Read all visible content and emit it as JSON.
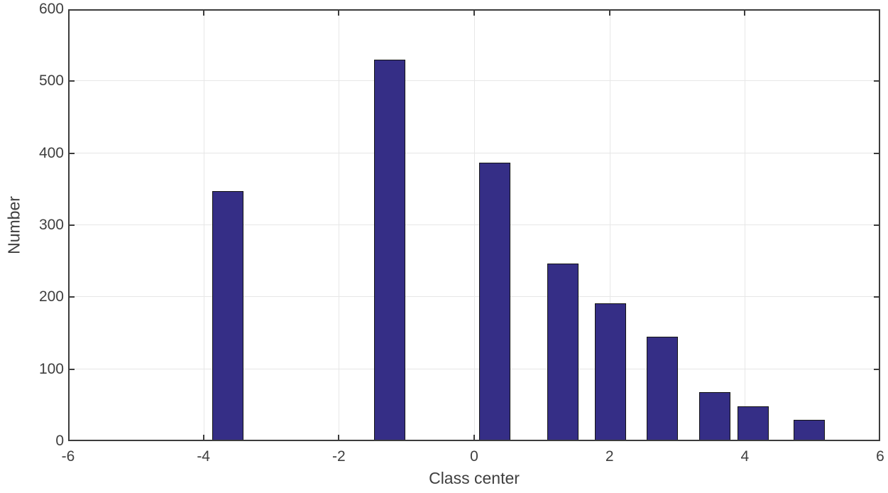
{
  "figure": {
    "background": "#ffffff",
    "axis_color": "#3c3c3c",
    "grid_color": "#e7e7e7",
    "text_color": "#3f3f3f"
  },
  "chart_data": {
    "type": "bar",
    "title": "",
    "xlabel": "Class center",
    "ylabel": "Number",
    "xlim": [
      -6,
      6
    ],
    "ylim": [
      0,
      600
    ],
    "xticks": [
      -6,
      -4,
      -2,
      0,
      2,
      4,
      6
    ],
    "xtick_labels": [
      "-6",
      "-4",
      "-2",
      "0",
      "2",
      "4",
      "6"
    ],
    "yticks": [
      0,
      100,
      200,
      300,
      400,
      500,
      600
    ],
    "ytick_labels": [
      "0",
      "100",
      "200",
      "300",
      "400",
      "500",
      "600"
    ],
    "grid": true,
    "legend": null,
    "bar_width": 0.46,
    "bar_fill_color": "#352e86",
    "bar_edge_color": "#141414",
    "x": [
      -3.64,
      -1.25,
      0.3,
      1.31,
      2.01,
      2.78,
      3.56,
      4.12,
      4.95
    ],
    "values": [
      347,
      530,
      387,
      247,
      191,
      145,
      68,
      48,
      30
    ]
  }
}
